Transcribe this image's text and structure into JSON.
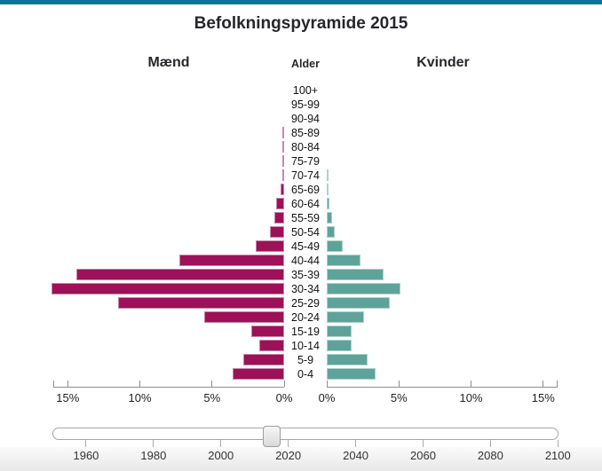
{
  "page": {
    "title": "Befolkningspyramide 2015",
    "left_header": "Mænd",
    "center_header": "Alder",
    "right_header": "Kvinder"
  },
  "colors": {
    "top_accent": "#0b739d",
    "men_bar": "#9c1158",
    "men_bar_border": "#c887ab",
    "women_bar": "#5ea39a",
    "women_bar_border": "#aed1cb",
    "axis": "#8f8f8f",
    "text": "#26262b"
  },
  "chart_data": {
    "type": "bar",
    "variant": "population_pyramid",
    "title": "Befolkningspyramide 2015",
    "year": 2015,
    "age_axis_label": "Alder",
    "unit": "%",
    "categories_top_to_bottom": [
      "100+",
      "95-99",
      "90-94",
      "85-89",
      "80-84",
      "75-79",
      "70-74",
      "65-69",
      "60-64",
      "55-59",
      "50-54",
      "45-49",
      "40-44",
      "35-39",
      "30-34",
      "25-29",
      "20-24",
      "15-19",
      "10-14",
      "5-9",
      "0-4"
    ],
    "series": [
      {
        "name": "Mænd",
        "side": "left",
        "values_percent": [
          0,
          0,
          0,
          0.02,
          0.03,
          0.05,
          0.1,
          0.25,
          0.55,
          0.7,
          1.0,
          1.95,
          7.25,
          14.4,
          16.1,
          11.5,
          5.55,
          2.3,
          1.7,
          2.85,
          3.6
        ]
      },
      {
        "name": "Kvinder",
        "side": "right",
        "values_percent": [
          0,
          0,
          0,
          0,
          0,
          0,
          0.02,
          0.08,
          0.2,
          0.37,
          0.55,
          1.1,
          2.35,
          3.95,
          5.1,
          4.35,
          2.6,
          1.7,
          1.7,
          2.8,
          3.4
        ]
      }
    ],
    "x_axis": {
      "tick_percents": [
        0,
        5,
        10,
        15
      ],
      "tick_label_suffix": "%",
      "max_percent": 16,
      "left_axis_labels_right_to_left": [
        "0%",
        "5%",
        "10%",
        "15%"
      ],
      "right_axis_labels_left_to_right": [
        "0%",
        "5%",
        "10%",
        "15%"
      ]
    }
  },
  "slider": {
    "min_year": 1950,
    "max_year": 2100,
    "current_year": 2015,
    "tick_years": [
      1960,
      1980,
      2000,
      2020,
      2040,
      2060,
      2080,
      2100
    ]
  }
}
